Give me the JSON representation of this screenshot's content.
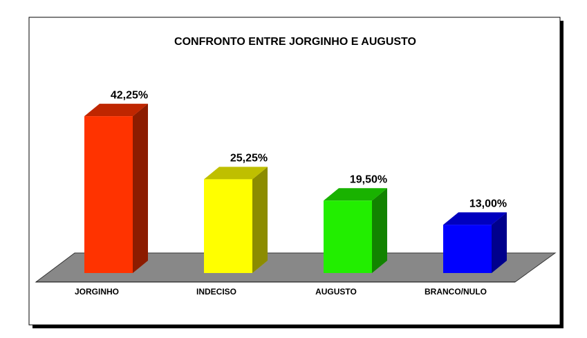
{
  "chart_data": {
    "type": "bar3d",
    "title": "CONFRONTO ENTRE JORGINHO E AUGUSTO",
    "categories": [
      "JORGINHO",
      "INDECISO",
      "AUGUSTO",
      "BRANCO/NULO"
    ],
    "values": [
      42.25,
      25.25,
      19.5,
      13.0
    ],
    "value_labels": [
      "42,25%",
      "25,25%",
      "19,50%",
      "13,00%"
    ],
    "colors": [
      "#ff3300",
      "#ffff00",
      "#22ee00",
      "#0000ff"
    ]
  }
}
